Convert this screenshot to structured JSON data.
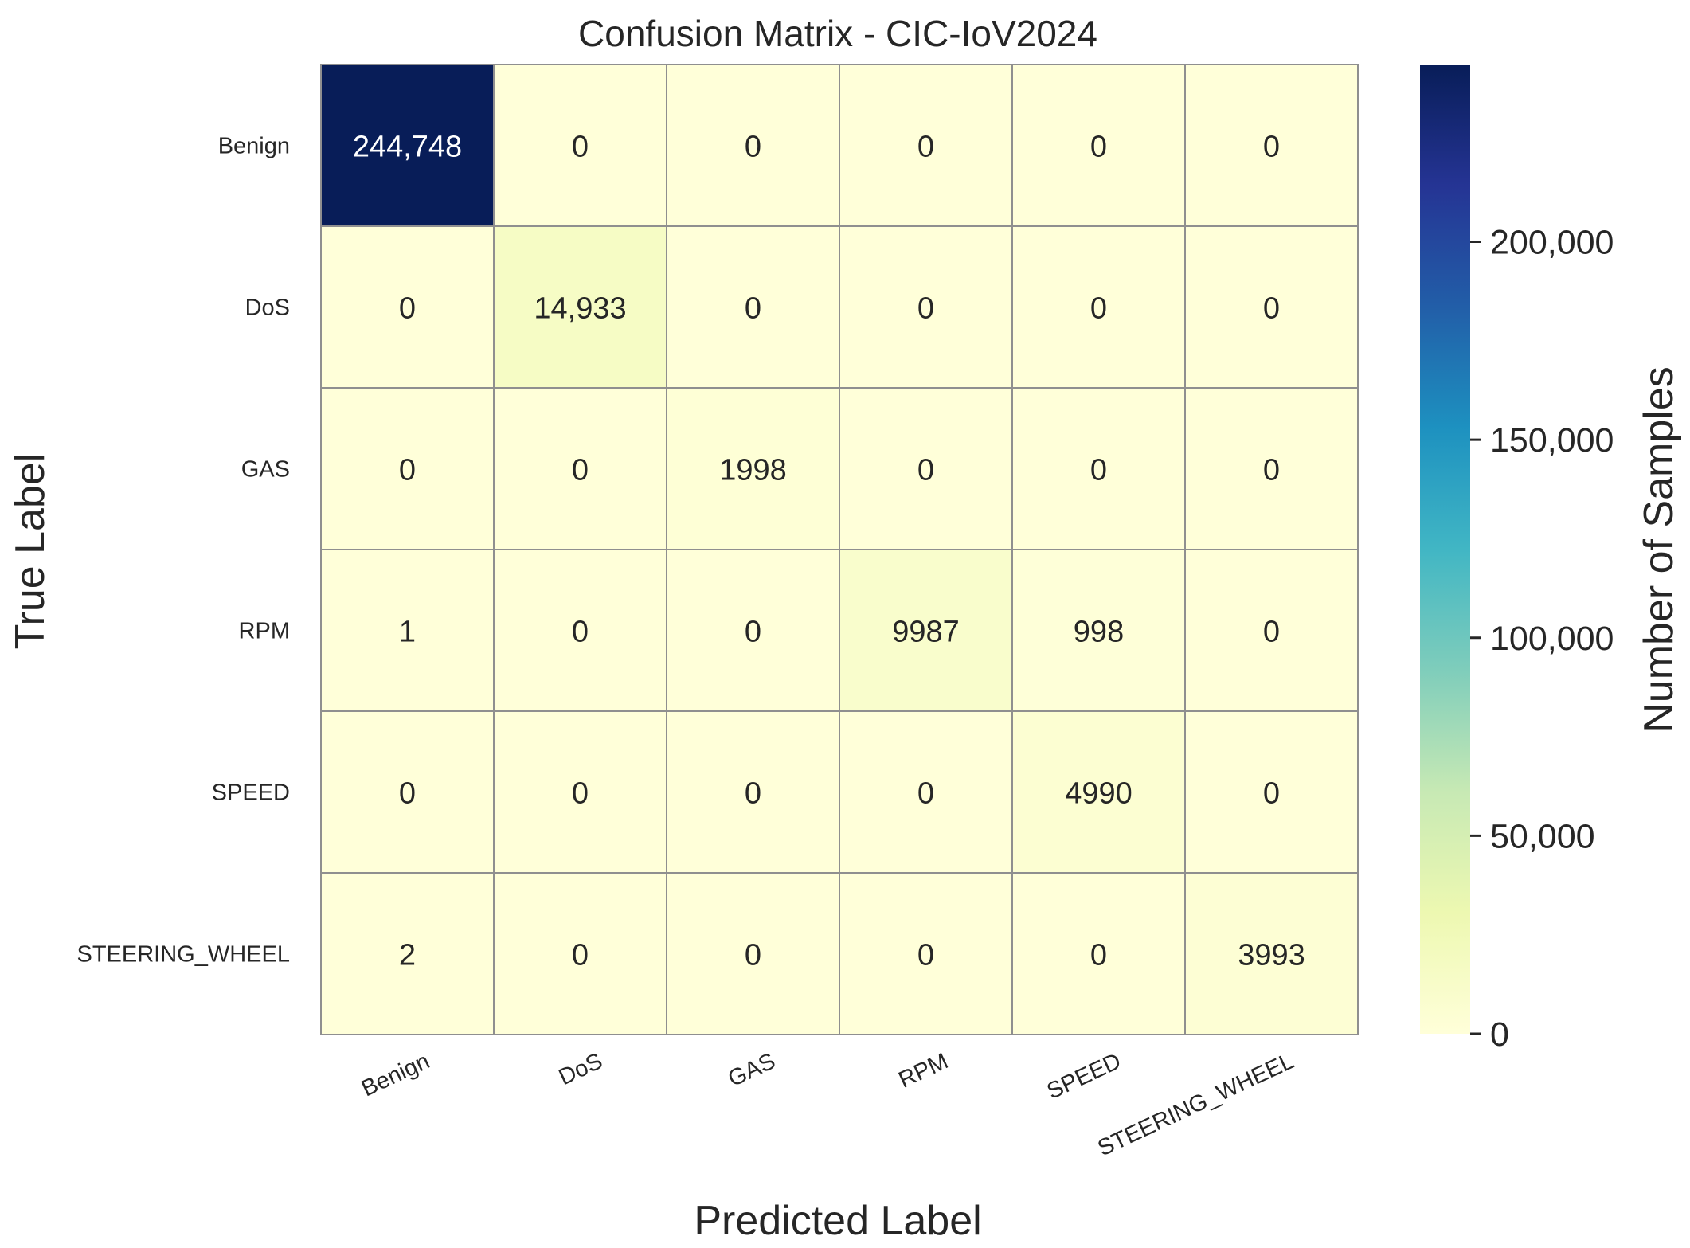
{
  "chart_data": {
    "type": "heatmap",
    "title": "Confusion Matrix - CIC-IoV2024",
    "xlabel": "Predicted Label",
    "ylabel": "True Label",
    "x_categories": [
      "Benign",
      "DoS",
      "GAS",
      "RPM",
      "SPEED",
      "STEERING_WHEEL"
    ],
    "y_categories": [
      "Benign",
      "DoS",
      "GAS",
      "RPM",
      "SPEED",
      "STEERING_WHEEL"
    ],
    "values": [
      [
        244748,
        0,
        0,
        0,
        0,
        0
      ],
      [
        0,
        14933,
        0,
        0,
        0,
        0
      ],
      [
        0,
        0,
        1998,
        0,
        0,
        0
      ],
      [
        1,
        0,
        0,
        9987,
        998,
        0
      ],
      [
        0,
        0,
        0,
        0,
        4990,
        0
      ],
      [
        2,
        0,
        0,
        0,
        0,
        3993
      ]
    ],
    "cell_labels": [
      [
        "244,748",
        "0",
        "0",
        "0",
        "0",
        "0"
      ],
      [
        "0",
        "14,933",
        "0",
        "0",
        "0",
        "0"
      ],
      [
        "0",
        "0",
        "1998",
        "0",
        "0",
        "0"
      ],
      [
        "1",
        "0",
        "0",
        "9987",
        "998",
        "0"
      ],
      [
        "0",
        "0",
        "0",
        "0",
        "4990",
        "0"
      ],
      [
        "2",
        "0",
        "0",
        "0",
        "0",
        "3993"
      ]
    ],
    "colormap": "YlGnBu",
    "colorbar": {
      "label": "Number of Samples",
      "ticks": [
        0,
        50000,
        100000,
        150000,
        200000
      ],
      "tick_labels": [
        "0",
        "50,000",
        "100,000",
        "150,000",
        "200,000"
      ],
      "range": [
        0,
        244748
      ]
    },
    "grid": true,
    "colors": {
      "cell_border": "#8f8f8f",
      "text_dark": "#262626",
      "text_light": "#ffffff"
    }
  }
}
